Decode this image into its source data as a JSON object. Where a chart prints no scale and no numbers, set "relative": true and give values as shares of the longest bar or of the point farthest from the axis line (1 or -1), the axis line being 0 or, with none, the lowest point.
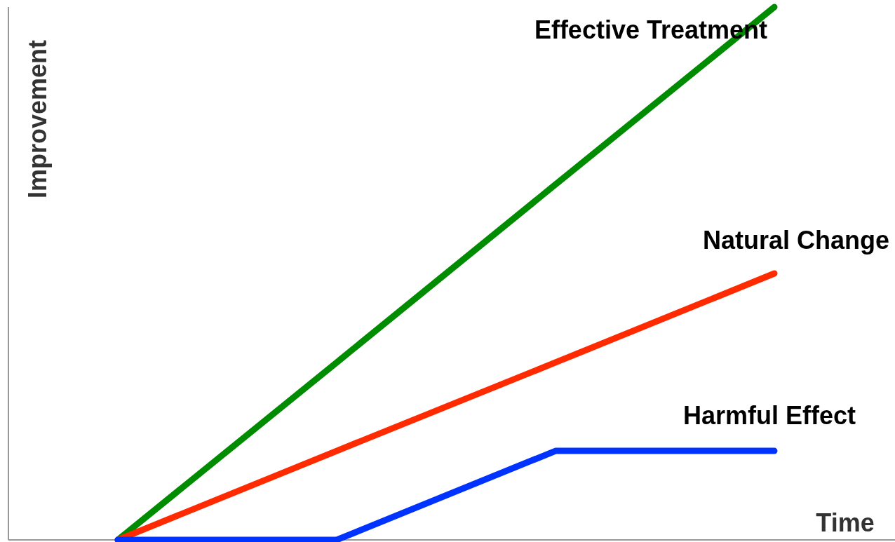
{
  "chart_data": {
    "type": "line",
    "relative": true,
    "xlabel": "Time",
    "ylabel": "Improvement",
    "categories": [
      null,
      null,
      null,
      null
    ],
    "marker": "none",
    "line_style": "solid",
    "series": [
      {
        "name": "Effective Treatment",
        "color": "#008c00",
        "values": [
          0,
          0.333,
          0.667,
          1
        ]
      },
      {
        "name": "Natural Change",
        "color": "#ff2a00",
        "values": [
          0,
          0.167,
          0.333,
          0.5
        ]
      },
      {
        "name": "Harmful Effect",
        "color": "#0033ff",
        "values": [
          0,
          0,
          0.167,
          0.167
        ]
      }
    ]
  }
}
